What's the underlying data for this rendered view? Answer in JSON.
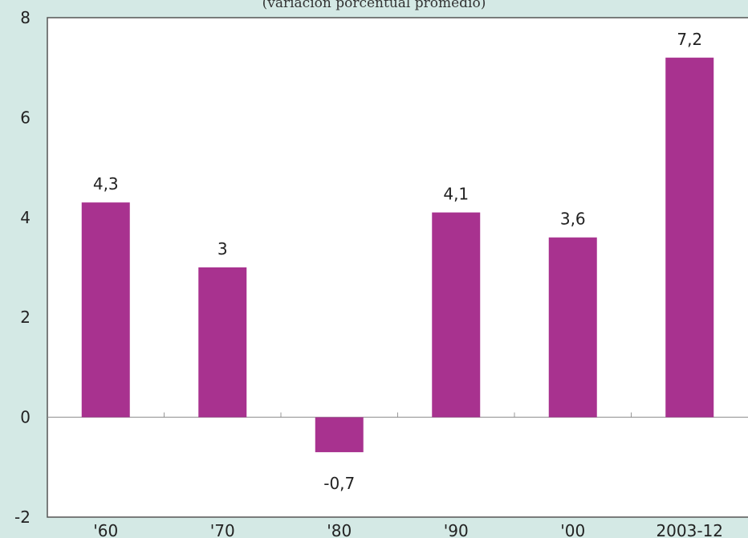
{
  "chart_data": {
    "type": "bar",
    "subtitle": "(variación porcentual promedio)",
    "categories": [
      "'60",
      "'70",
      "'80",
      "'90",
      "'00",
      "2003-12"
    ],
    "values": [
      4.3,
      3,
      -0.7,
      4.1,
      3.6,
      7.2
    ],
    "value_labels": [
      "4,3",
      "3",
      "-0,7",
      "4,1",
      "3,6",
      "7,2"
    ],
    "ylim": [
      -2,
      8
    ],
    "yticks": [
      -2,
      0,
      2,
      4,
      6,
      8
    ],
    "ytick_labels": [
      "-2",
      "0",
      "2",
      "4",
      "6",
      "8"
    ],
    "xlabel": "",
    "ylabel": "",
    "grid": false,
    "colors": {
      "bar": "#a8328f",
      "plot_background": "#ffffff",
      "page_background": "#d4e9e5",
      "axis": "#555555"
    }
  }
}
